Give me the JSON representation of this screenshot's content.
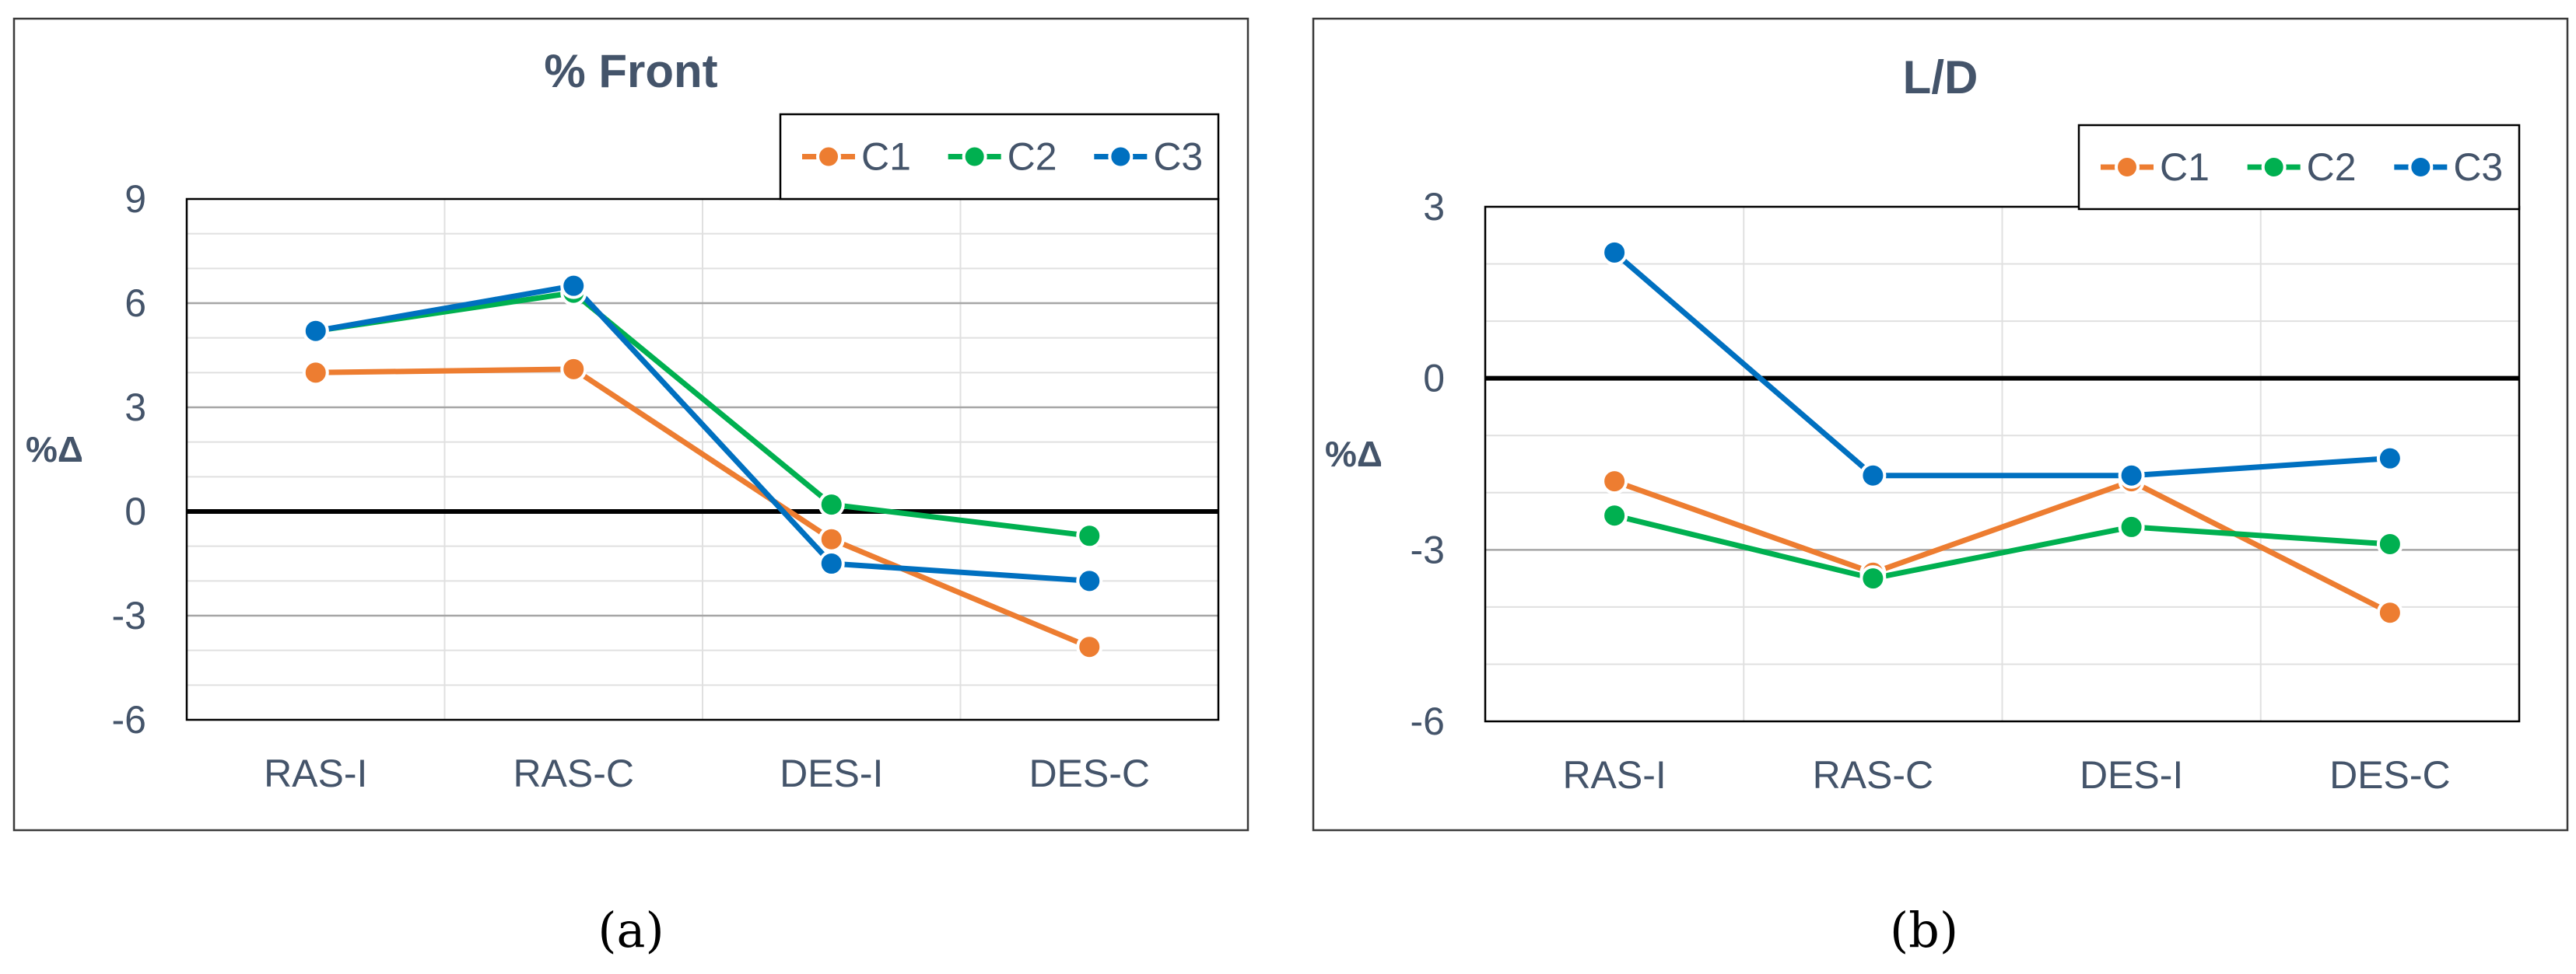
{
  "colors": {
    "C1": "#ED7D31",
    "C2": "#00B050",
    "C3": "#0070C0",
    "frame": "#3a3a3a",
    "text": "#44546A",
    "grid_major": "#a6a6a6",
    "grid_minor": "#e0e0e0",
    "zero_line": "#000000"
  },
  "chart_data": [
    {
      "type": "line",
      "title": "% Front",
      "ylabel": "%Δ",
      "xlabel": "",
      "categories": [
        "RAS-I",
        "RAS-C",
        "DES-I",
        "DES-C"
      ],
      "ylim": [
        -6,
        9
      ],
      "yticks": [
        -6,
        -3,
        0,
        3,
        6,
        9
      ],
      "ytick_labels": [
        "-6",
        "-3",
        "0",
        "3",
        "6",
        "9"
      ],
      "minor_step": 1,
      "grid": true,
      "legend": "top-right",
      "caption": "(a)",
      "series": [
        {
          "name": "C1",
          "values": [
            4.0,
            4.1,
            -0.8,
            -3.9
          ]
        },
        {
          "name": "C2",
          "values": [
            5.2,
            6.3,
            0.2,
            -0.7
          ]
        },
        {
          "name": "C3",
          "values": [
            5.2,
            6.5,
            -1.5,
            -2.0
          ]
        }
      ]
    },
    {
      "type": "line",
      "title": "L/D",
      "ylabel": "%Δ",
      "xlabel": "",
      "categories": [
        "RAS-I",
        "RAS-C",
        "DES-I",
        "DES-C"
      ],
      "ylim": [
        -6,
        3
      ],
      "yticks": [
        -6,
        -3,
        0,
        3
      ],
      "ytick_labels": [
        "-6",
        "-3",
        "0",
        "3"
      ],
      "minor_step": 1,
      "grid": true,
      "legend": "top-right",
      "caption": "(b)",
      "series": [
        {
          "name": "C1",
          "values": [
            -1.8,
            -3.4,
            -1.8,
            -4.1
          ]
        },
        {
          "name": "C2",
          "values": [
            -2.4,
            -3.5,
            -2.6,
            -2.9
          ]
        },
        {
          "name": "C3",
          "values": [
            2.2,
            -1.7,
            -1.7,
            -1.4
          ]
        }
      ]
    }
  ]
}
